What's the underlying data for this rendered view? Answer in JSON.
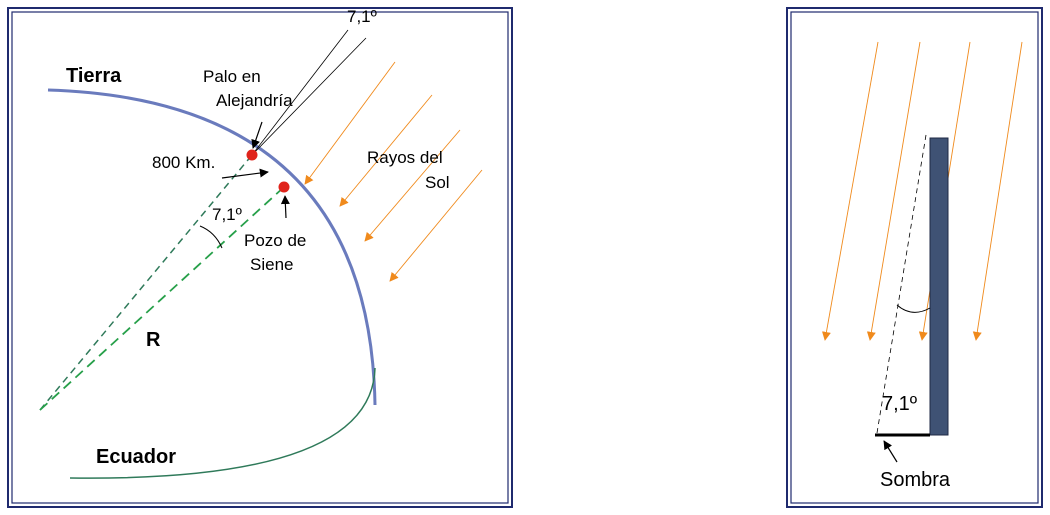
{
  "left_panel": {
    "earth": "Tierra",
    "stick": [
      "Palo en",
      "Alejandría"
    ],
    "top_angle": "7,1º",
    "distance": "800 Km.",
    "sun_rays": [
      "Rayos del",
      "Sol"
    ],
    "center_angle": "7,1º",
    "well": [
      "Pozo de",
      "Siene"
    ],
    "radius": "R",
    "equator": "Ecuador"
  },
  "right_panel": {
    "angle": "7,1º",
    "shadow": "Sombra"
  }
}
